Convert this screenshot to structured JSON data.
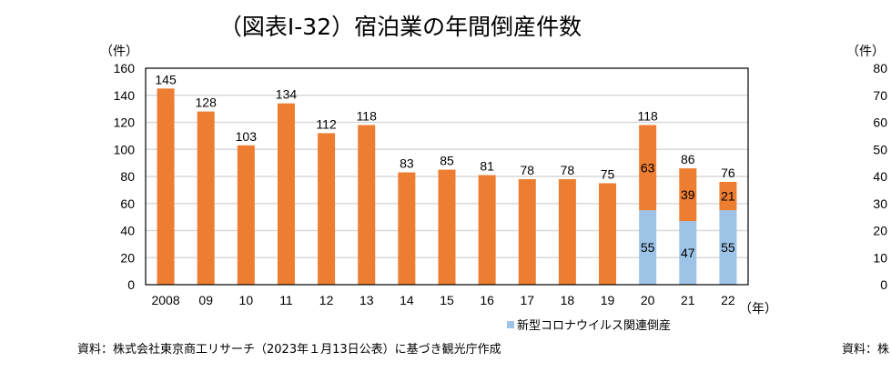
{
  "chart_data": {
    "type": "bar",
    "stacked": true,
    "title": "（図表Ⅰ-32）宿泊業の年間倒産件数",
    "ylabel": "（件）",
    "xlabel": "（年）",
    "ylim": [
      0,
      160
    ],
    "yticks": [
      0,
      20,
      40,
      60,
      80,
      100,
      120,
      140,
      160
    ],
    "grid": true,
    "categories": [
      "2008",
      "09",
      "10",
      "11",
      "12",
      "13",
      "14",
      "15",
      "16",
      "17",
      "18",
      "19",
      "20",
      "21",
      "22"
    ],
    "totals": [
      145,
      128,
      103,
      134,
      112,
      118,
      83,
      85,
      81,
      78,
      78,
      75,
      118,
      86,
      76
    ],
    "series": [
      {
        "name": "新型コロナウイルス関連倒産",
        "color": "#9dc3e6",
        "values": [
          0,
          0,
          0,
          0,
          0,
          0,
          0,
          0,
          0,
          0,
          0,
          0,
          55,
          47,
          55
        ]
      },
      {
        "color": "#ed7d31",
        "values": [
          145,
          128,
          103,
          134,
          112,
          118,
          83,
          85,
          81,
          78,
          78,
          75,
          63,
          39,
          21
        ]
      }
    ],
    "legend_position": "bottom-right",
    "source": "資料：株式会社東京商工リサーチ（2023年１月13日公表）に基づき観光庁作成"
  },
  "adjacent_chart": {
    "ylabel": "（件）",
    "yticks": [
      "80",
      "70",
      "60",
      "50",
      "40",
      "30",
      "20",
      "10",
      "0"
    ],
    "source_fragment": "資料：株"
  }
}
